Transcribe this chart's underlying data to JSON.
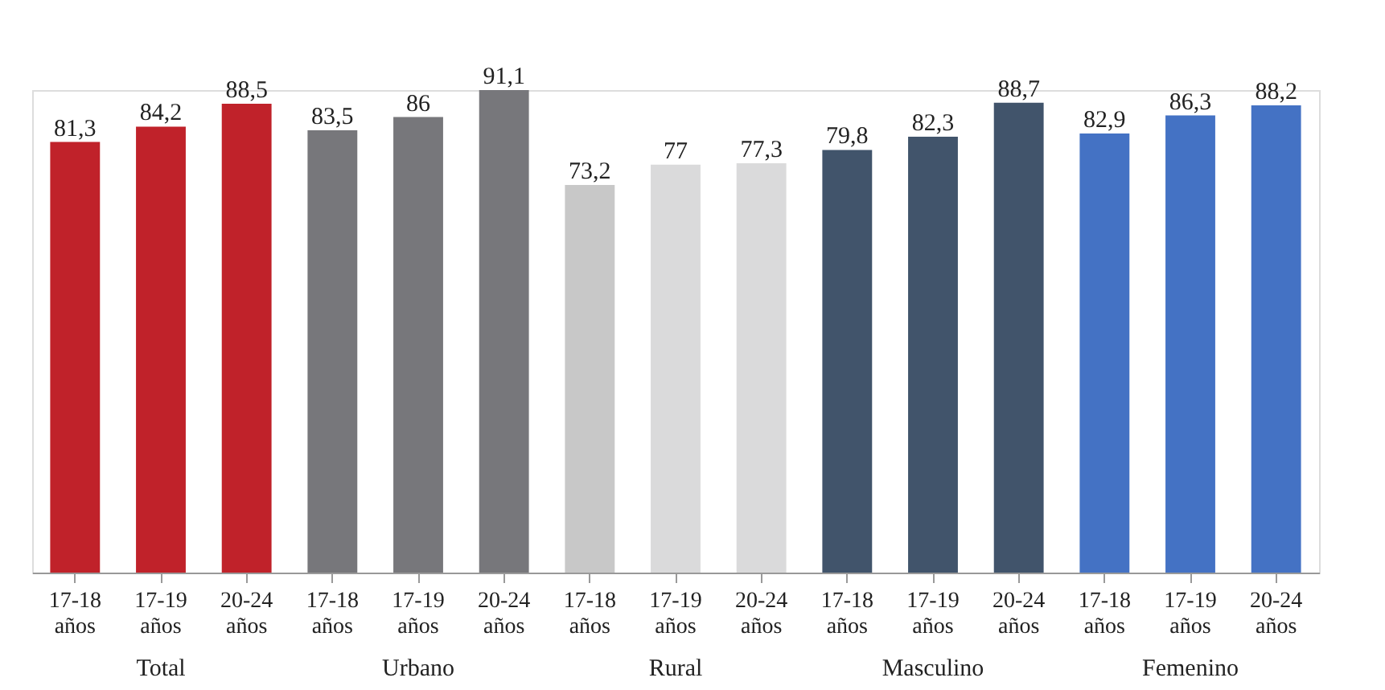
{
  "chart_data": {
    "type": "bar",
    "categories": [
      "17-18 años",
      "17-19 años",
      "20-24 años",
      "17-18 años",
      "17-19 años",
      "20-24 años",
      "17-18 años",
      "17-19 años",
      "20-24 años",
      "17-18 años",
      "17-19 años",
      "20-24 años",
      "17-18 años",
      "17-19 años",
      "20-24 años"
    ],
    "values": [
      81.3,
      84.2,
      88.5,
      83.5,
      86,
      91.1,
      73.2,
      77,
      77.3,
      79.8,
      82.3,
      88.7,
      82.9,
      86.3,
      88.2
    ],
    "value_labels": [
      "81,3",
      "84,2",
      "88,5",
      "83,5",
      "86",
      "91,1",
      "73,2",
      "77",
      "77,3",
      "79,8",
      "82,3",
      "88,7",
      "82,9",
      "86,3",
      "88,2"
    ],
    "colors": [
      "#c0222a",
      "#c0222a",
      "#c0222a",
      "#77777b",
      "#77777b",
      "#77777b",
      "#c8c8c8",
      "#dadadb",
      "#dadadb",
      "#41546b",
      "#41546b",
      "#41546b",
      "#4472c4",
      "#4472c4",
      "#4472c4"
    ],
    "annotations": [
      "Total",
      "Urbano",
      "Rural",
      "Masculino",
      "Femenino"
    ],
    "grid": false
  }
}
